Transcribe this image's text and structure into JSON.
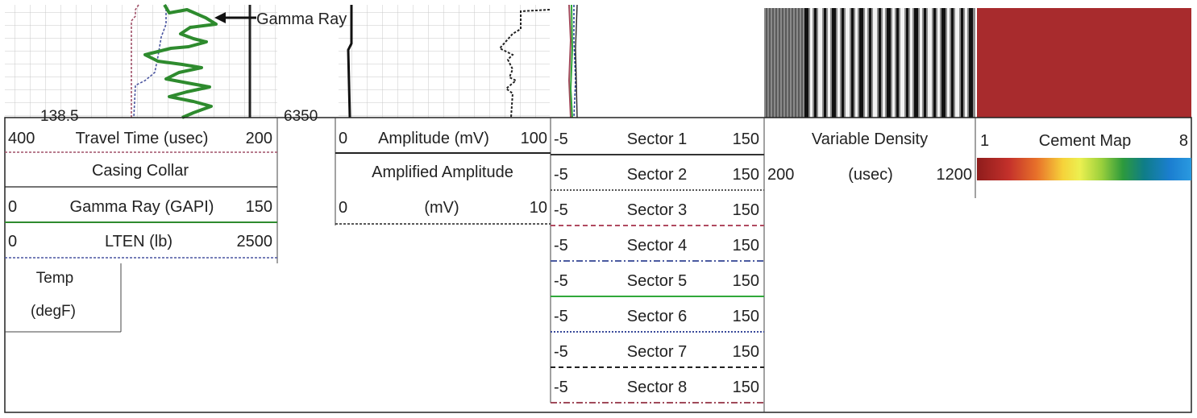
{
  "annotation": {
    "label": "Gamma Ray"
  },
  "depth_labels": {
    "left": "138.5",
    "right": "6350"
  },
  "track1": {
    "travel_time": {
      "min": "400",
      "label": "Travel Time (usec)",
      "max": "200",
      "color": "#a05068"
    },
    "casing_collar": {
      "label": "Casing Collar"
    },
    "gamma_ray": {
      "min": "0",
      "label": "Gamma Ray (GAPI)",
      "max": "150",
      "color": "#2e8b2e"
    },
    "lten": {
      "min": "0",
      "label": "LTEN (lb)",
      "max": "2500",
      "color": "#4a55a0"
    },
    "temp": {
      "line1": "Temp",
      "line2": "(degF)"
    }
  },
  "track2": {
    "amplitude": {
      "min": "0",
      "label": "Amplitude (mV)",
      "max": "100"
    },
    "amplified_amplitude": {
      "label": "Amplified Amplitude",
      "min": "0",
      "unit": "(mV)",
      "max": "10"
    }
  },
  "sectors": [
    {
      "min": "-5",
      "label": "Sector 1",
      "max": "150",
      "color": "#333333",
      "style": "solid"
    },
    {
      "min": "-5",
      "label": "Sector 2",
      "max": "150",
      "color": "#555555",
      "style": "dotted"
    },
    {
      "min": "-5",
      "label": "Sector 3",
      "max": "150",
      "color": "#b04a60",
      "style": "dashed"
    },
    {
      "min": "-5",
      "label": "Sector 4",
      "max": "150",
      "color": "#4a5aa0",
      "style": "dashdot"
    },
    {
      "min": "-5",
      "label": "Sector 5",
      "max": "150",
      "color": "#2fa83a",
      "style": "solid"
    },
    {
      "min": "-5",
      "label": "Sector 6",
      "max": "150",
      "color": "#3a4a9a",
      "style": "dotted"
    },
    {
      "min": "-5",
      "label": "Sector 7",
      "max": "150",
      "color": "#222222",
      "style": "dashed"
    },
    {
      "min": "-5",
      "label": "Sector 8",
      "max": "150",
      "color": "#a04a5a",
      "style": "dashdot"
    }
  ],
  "vdl": {
    "label": "Variable Density",
    "min": "200",
    "unit": "(usec)",
    "max": "1200"
  },
  "cement_map": {
    "min": "1",
    "label": "Cement Map",
    "max": "8",
    "colors": [
      "#8e1c1c",
      "#c4312b",
      "#e8722a",
      "#f6d23a",
      "#ecf050",
      "#9bd03c",
      "#2d9a3c",
      "#0f7d88",
      "#1b7ed0",
      "#2a9ae0"
    ]
  }
}
